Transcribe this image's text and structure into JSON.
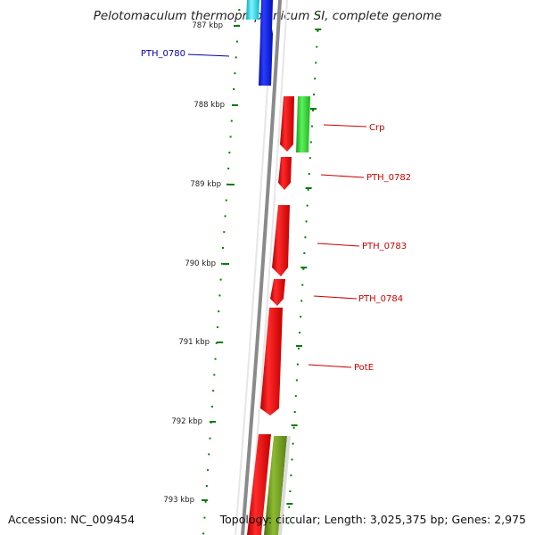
{
  "title": "Pelotomaculum thermopropionicum SI, complete genome",
  "accession": "Accession: NC_009454",
  "topology": "Topology: circular; Length: 3,025,375 bp; Genes: 2,975",
  "ticks": [
    {
      "label": "787 kbp",
      "kb": 787
    },
    {
      "label": "788 kbp",
      "kb": 788
    },
    {
      "label": "789 kbp",
      "kb": 789
    },
    {
      "label": "790 kbp",
      "kb": 790
    },
    {
      "label": "791 kbp",
      "kb": 791
    },
    {
      "label": "792 kbp",
      "kb": 792
    },
    {
      "label": "793 kbp",
      "kb": 793
    }
  ],
  "gene_labels": [
    {
      "name": "PTH_0780",
      "color": "#0000aa"
    },
    {
      "name": "Crp",
      "color": "#cc0000"
    },
    {
      "name": "PTH_0782",
      "color": "#cc0000"
    },
    {
      "name": "PTH_0783",
      "color": "#cc0000"
    },
    {
      "name": "PTH_0784",
      "color": "#cc0000"
    },
    {
      "name": "PotE",
      "color": "#cc0000"
    }
  ],
  "feature_colors": {
    "blue": "#0a1ee6",
    "cyan": "#12d6e6",
    "red": "#e80a0a",
    "green": "#2fd22f",
    "olive": "#6e9a1e",
    "backbone": "#8a8a8a",
    "tick_green": "#0a7a0a"
  }
}
